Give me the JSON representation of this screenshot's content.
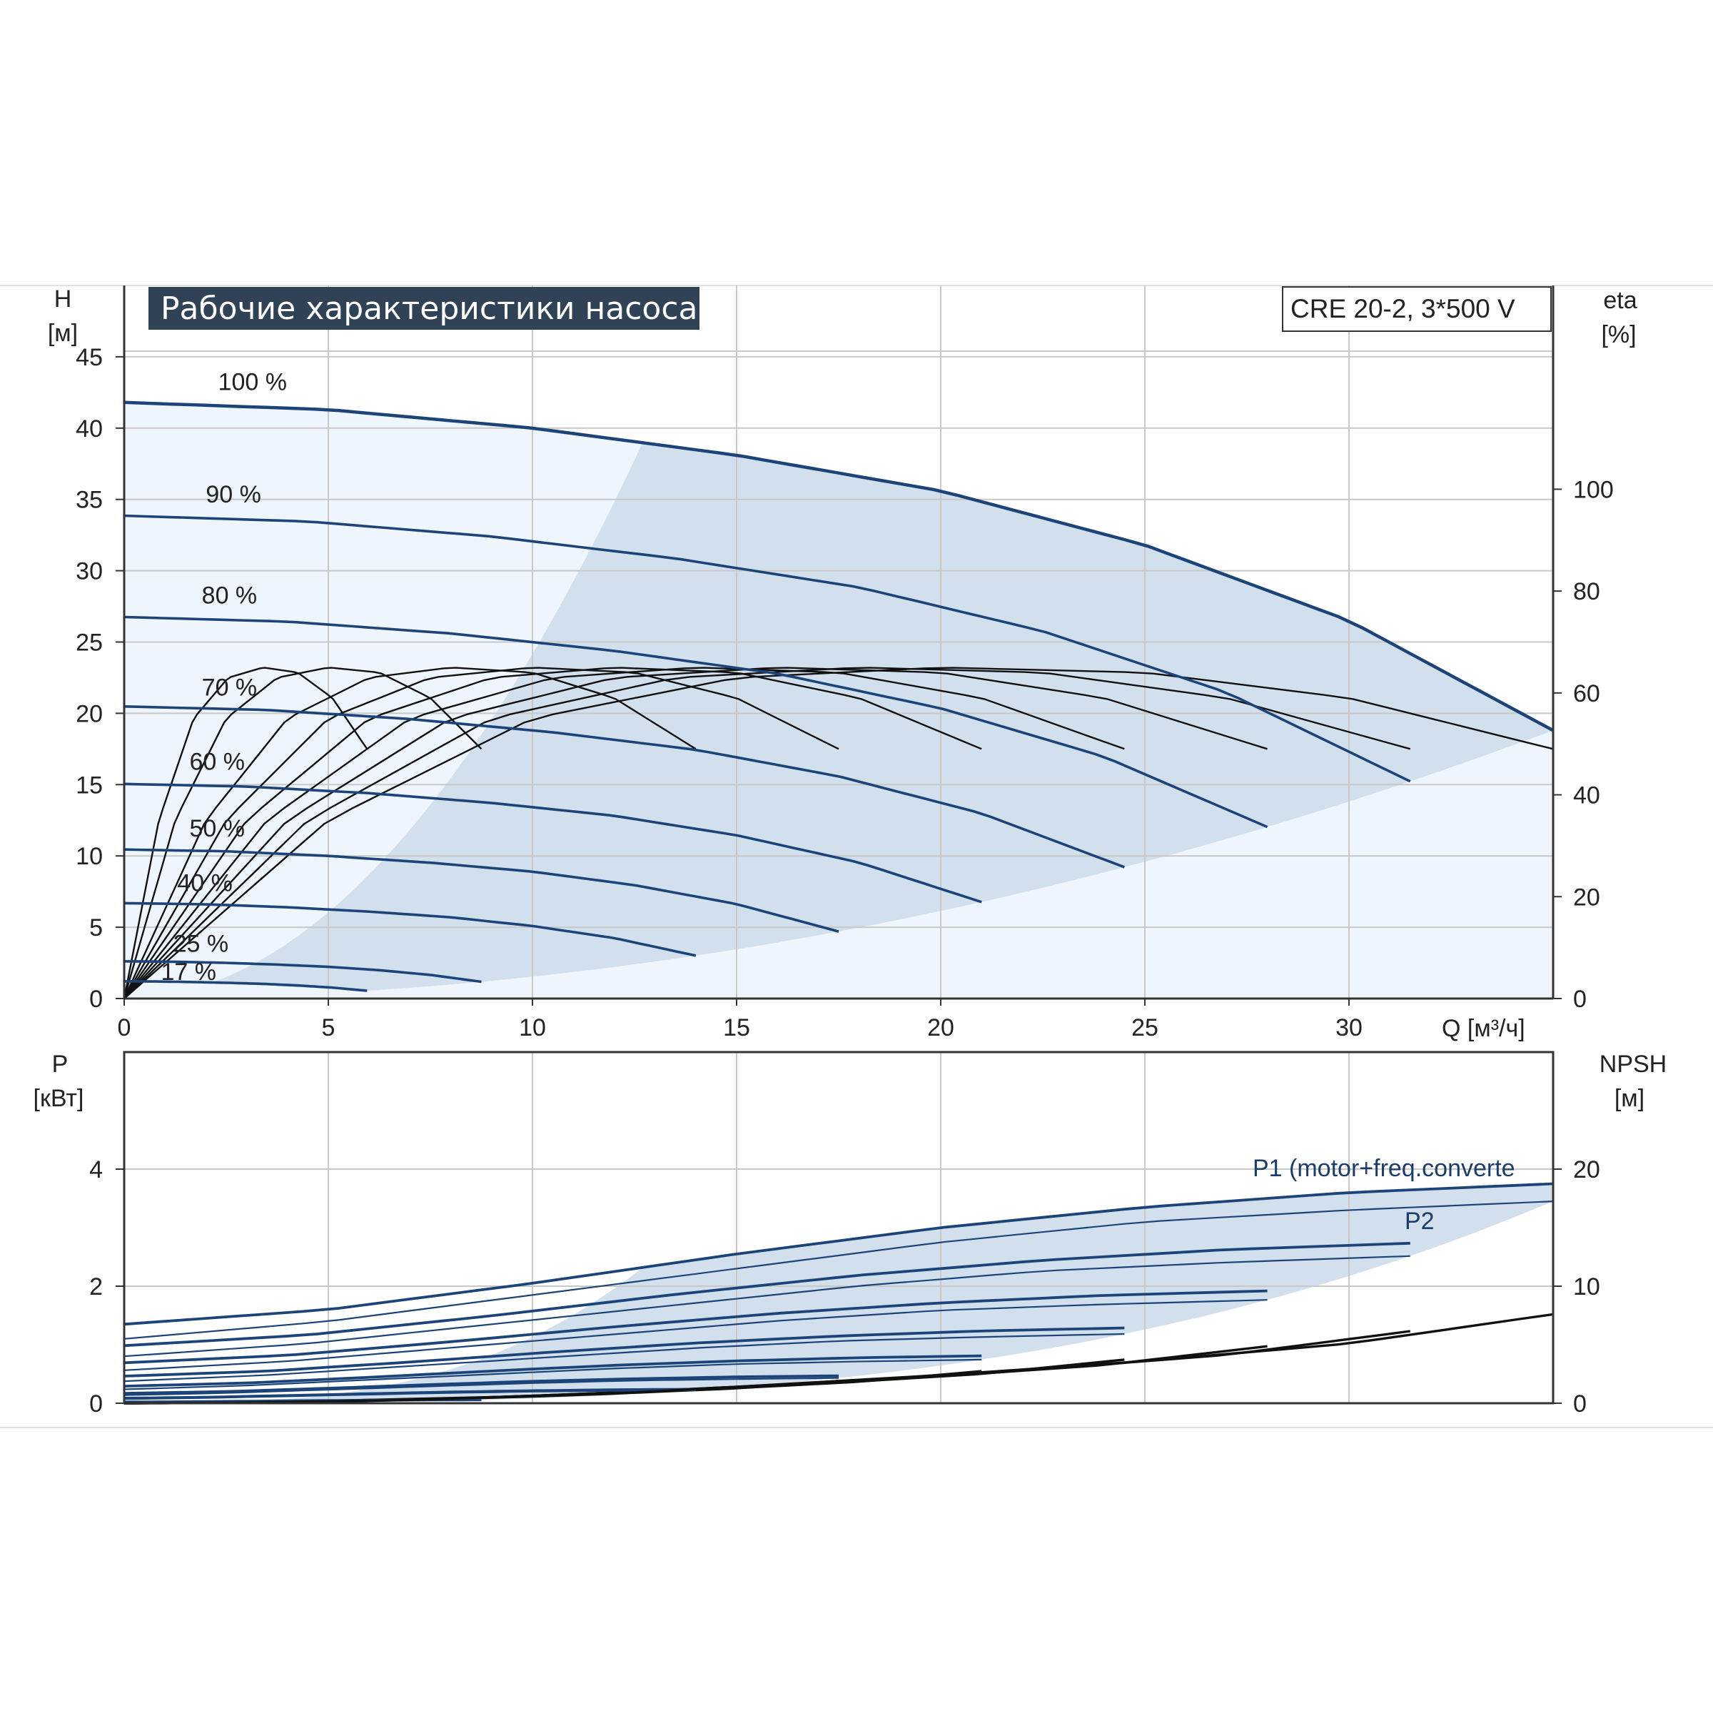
{
  "header": {
    "title": "Рабочие характеристики насоса",
    "model": "CRE 20-2, 3*500 V"
  },
  "colors": {
    "curve_blue": "#1c4478",
    "fill_light": "#eef5fc",
    "fill_region": "#d2e0ee",
    "title_bg": "#2f4256",
    "grid": "#c8c8c8",
    "eta": "#111111"
  },
  "chart_data": [
    {
      "type": "line",
      "xlabel": "Q [м³/ч]",
      "ylabel_left": "H",
      "ylabel_left_unit": "[м]",
      "ylabel_right": "eta",
      "ylabel_right_unit": "[%]",
      "xlim": [
        0,
        35
      ],
      "ylim": [
        0,
        50
      ],
      "y2lim": [
        0,
        140
      ],
      "x_ticks": [
        "0",
        "5",
        "10",
        "15",
        "20",
        "25",
        "30"
      ],
      "y_ticks": [
        "0",
        "5",
        "10",
        "15",
        "20",
        "25",
        "30",
        "35",
        "40",
        "45"
      ],
      "y2_ticks": [
        "0",
        "20",
        "40",
        "60",
        "80",
        "100"
      ],
      "grid": true,
      "speed_levels": [
        1.0,
        0.9,
        0.8,
        0.7,
        0.6,
        0.5,
        0.4,
        0.25,
        0.17
      ],
      "level_labels": [
        "100 %",
        "90 %",
        "80 %",
        "70 %",
        "60 %",
        "50 %",
        "40 %",
        "25 %",
        "17 %"
      ],
      "head_curve_100": {
        "x": [
          0,
          5,
          10,
          15,
          20,
          25,
          30,
          35
        ],
        "y": [
          41.8,
          41.3,
          40.0,
          38.1,
          35.6,
          31.8,
          26.5,
          18.8
        ]
      },
      "efficiency_curve_100": {
        "x": [
          0,
          5,
          10,
          15,
          20,
          25,
          30,
          35
        ],
        "y": [
          0,
          35,
          55,
          63,
          65,
          64,
          59,
          49
        ]
      },
      "operating_range": {
        "q_min_100": 12.7,
        "q_max_100": 35
      }
    },
    {
      "type": "line",
      "ylabel_left": "P",
      "ylabel_left_unit": "[кВт]",
      "ylabel_right": "NPSH",
      "ylabel_right_unit": "[м]",
      "xlim": [
        0,
        35
      ],
      "ylim": [
        0,
        6
      ],
      "y2lim": [
        0,
        30
      ],
      "y_ticks": [
        "0",
        "2",
        "4"
      ],
      "y2_ticks": [
        "0",
        "10",
        "20"
      ],
      "grid": true,
      "series": [
        {
          "name": "P1 (motor+freq.converte",
          "x": [
            0,
            5,
            10,
            15,
            20,
            25,
            30,
            35
          ],
          "y": [
            1.35,
            1.6,
            2.05,
            2.55,
            3.0,
            3.35,
            3.6,
            3.75
          ]
        },
        {
          "name": "P2",
          "x": [
            0,
            5,
            10,
            15,
            20,
            25,
            30,
            35
          ],
          "y": [
            1.1,
            1.4,
            1.85,
            2.3,
            2.75,
            3.1,
            3.3,
            3.45
          ]
        },
        {
          "name": "NPSH",
          "x": [
            0,
            5,
            10,
            15,
            20,
            25,
            30,
            35
          ],
          "y": [
            0,
            0.2,
            0.6,
            1.4,
            2.4,
            3.6,
            5.1,
            7.6
          ]
        }
      ]
    }
  ]
}
